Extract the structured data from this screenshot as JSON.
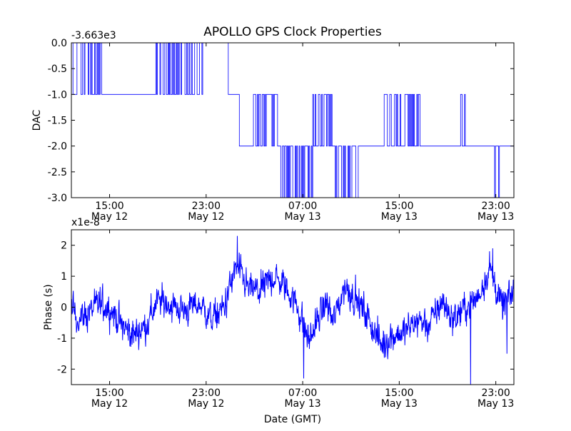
{
  "figure": {
    "title": "APOLLO GPS Clock Properties"
  },
  "chart_data": [
    {
      "type": "line",
      "title": "APOLLO GPS Clock Properties",
      "ylabel": "DAC",
      "xlabel": "",
      "offset_label": "-3.663e3",
      "x_range": [
        "2012-05-12T11:50",
        "2012-05-14T00:30"
      ],
      "ylim": [
        -3.0,
        0.0
      ],
      "y_ticks": [
        {
          "value": 0.0,
          "label": "0.0"
        },
        {
          "value": -0.5,
          "label": "-0.5"
        },
        {
          "value": -1.0,
          "label": "-1.0"
        },
        {
          "value": -1.5,
          "label": "-1.5"
        },
        {
          "value": -2.0,
          "label": "-2.0"
        },
        {
          "value": -2.5,
          "label": "-2.5"
        },
        {
          "value": -3.0,
          "label": "-3.0"
        }
      ],
      "x_ticks": [
        {
          "time": "2012-05-12T15:00",
          "label": "15:00",
          "sublabel": "May 12"
        },
        {
          "time": "2012-05-12T23:00",
          "label": "23:00",
          "sublabel": "May 12"
        },
        {
          "time": "2012-05-13T07:00",
          "label": "07:00",
          "sublabel": "May 13"
        },
        {
          "time": "2012-05-13T15:00",
          "label": "15:00",
          "sublabel": "May 13"
        },
        {
          "time": "2012-05-13T23:00",
          "label": "23:00",
          "sublabel": "May 13"
        }
      ],
      "series": [
        {
          "color": "#0000ff",
          "segments": [
            {
              "start": "2012-05-12T11:50",
              "end": "2012-05-12T14:25",
              "levels": [
                0,
                -1
              ]
            },
            {
              "start": "2012-05-12T14:25",
              "end": "2012-05-12T18:50",
              "levels": [
                -1
              ]
            },
            {
              "start": "2012-05-12T18:50",
              "end": "2012-05-12T22:55",
              "levels": [
                0,
                -1
              ]
            },
            {
              "start": "2012-05-12T22:55",
              "end": "2012-05-13T00:50",
              "levels": [
                0
              ]
            },
            {
              "start": "2012-05-13T00:50",
              "end": "2012-05-13T01:45",
              "levels": [
                -1
              ]
            },
            {
              "start": "2012-05-13T01:45",
              "end": "2012-05-13T02:55",
              "levels": [
                -2
              ]
            },
            {
              "start": "2012-05-13T02:55",
              "end": "2012-05-13T04:55",
              "levels": [
                -1,
                -2
              ]
            },
            {
              "start": "2012-05-13T04:55",
              "end": "2012-05-13T07:50",
              "levels": [
                -2,
                -3
              ]
            },
            {
              "start": "2012-05-13T07:50",
              "end": "2012-05-13T09:30",
              "levels": [
                -1,
                -2
              ]
            },
            {
              "start": "2012-05-13T09:30",
              "end": "2012-05-13T11:40",
              "levels": [
                -2,
                -3
              ]
            },
            {
              "start": "2012-05-13T11:40",
              "end": "2012-05-13T13:45",
              "levels": [
                -2
              ]
            },
            {
              "start": "2012-05-13T13:45",
              "end": "2012-05-13T16:55",
              "levels": [
                -1,
                -2
              ]
            },
            {
              "start": "2012-05-13T16:55",
              "end": "2012-05-13T20:05",
              "levels": [
                -2
              ]
            },
            {
              "start": "2012-05-13T20:05",
              "end": "2012-05-13T20:40",
              "levels": [
                -1,
                -2
              ]
            },
            {
              "start": "2012-05-13T20:40",
              "end": "2012-05-13T22:50",
              "levels": [
                -2
              ]
            },
            {
              "start": "2012-05-13T22:50",
              "end": "2012-05-13T23:30",
              "levels": [
                -2,
                -3
              ]
            },
            {
              "start": "2012-05-13T23:30",
              "end": "2012-05-14T00:30",
              "levels": [
                -2
              ]
            }
          ]
        }
      ]
    },
    {
      "type": "line",
      "ylabel": "Phase (s)",
      "xlabel": "Date (GMT)",
      "offset_label": "x1e-8",
      "x_range": [
        "2012-05-12T11:50",
        "2012-05-14T00:30"
      ],
      "ylim": [
        -2.5,
        2.5
      ],
      "y_ticks": [
        {
          "value": 2,
          "label": "2"
        },
        {
          "value": 1,
          "label": "1"
        },
        {
          "value": 0,
          "label": "0"
        },
        {
          "value": -1,
          "label": "-1"
        },
        {
          "value": -2,
          "label": "-2"
        }
      ],
      "x_ticks": [
        {
          "time": "2012-05-12T15:00",
          "label": "15:00",
          "sublabel": "May 12"
        },
        {
          "time": "2012-05-12T23:00",
          "label": "23:00",
          "sublabel": "May 12"
        },
        {
          "time": "2012-05-13T07:00",
          "label": "07:00",
          "sublabel": "May 13"
        },
        {
          "time": "2012-05-13T15:00",
          "label": "15:00",
          "sublabel": "May 13"
        },
        {
          "time": "2012-05-13T23:00",
          "label": "23:00",
          "sublabel": "May 13"
        }
      ],
      "series": [
        {
          "color": "#0000ff",
          "trend": [
            {
              "time": "2012-05-12T11:50",
              "value": 0.0
            },
            {
              "time": "2012-05-12T12:30",
              "value": -0.4
            },
            {
              "time": "2012-05-12T13:30",
              "value": -0.1
            },
            {
              "time": "2012-05-12T14:10",
              "value": 0.1
            },
            {
              "time": "2012-05-12T15:00",
              "value": 0.0
            },
            {
              "time": "2012-05-12T16:00",
              "value": -0.6
            },
            {
              "time": "2012-05-12T17:00",
              "value": -0.9
            },
            {
              "time": "2012-05-12T18:00",
              "value": -0.6
            },
            {
              "time": "2012-05-12T19:00",
              "value": 0.2
            },
            {
              "time": "2012-05-12T20:00",
              "value": 0.1
            },
            {
              "time": "2012-05-12T21:00",
              "value": -0.1
            },
            {
              "time": "2012-05-12T22:30",
              "value": 0.1
            },
            {
              "time": "2012-05-12T23:30",
              "value": -0.4
            },
            {
              "time": "2012-05-13T00:30",
              "value": 0.0
            },
            {
              "time": "2012-05-13T01:30",
              "value": 1.3
            },
            {
              "time": "2012-05-13T02:30",
              "value": 0.6
            },
            {
              "time": "2012-05-13T03:30",
              "value": 0.5
            },
            {
              "time": "2012-05-13T04:30",
              "value": 1.0
            },
            {
              "time": "2012-05-13T05:30",
              "value": 0.7
            },
            {
              "time": "2012-05-13T06:30",
              "value": 0.1
            },
            {
              "time": "2012-05-13T07:30",
              "value": -1.1
            },
            {
              "time": "2012-05-13T08:30",
              "value": -0.2
            },
            {
              "time": "2012-05-13T09:00",
              "value": 0.2
            },
            {
              "time": "2012-05-13T09:30",
              "value": -0.5
            },
            {
              "time": "2012-05-13T10:30",
              "value": 0.7
            },
            {
              "time": "2012-05-13T11:30",
              "value": 0.2
            },
            {
              "time": "2012-05-13T12:30",
              "value": -0.4
            },
            {
              "time": "2012-05-13T13:30",
              "value": -1.2
            },
            {
              "time": "2012-05-13T14:30",
              "value": -0.9
            },
            {
              "time": "2012-05-13T15:30",
              "value": -0.8
            },
            {
              "time": "2012-05-13T16:30",
              "value": -0.4
            },
            {
              "time": "2012-05-13T17:30",
              "value": -0.6
            },
            {
              "time": "2012-05-13T18:30",
              "value": 0.2
            },
            {
              "time": "2012-05-13T19:30",
              "value": -0.4
            },
            {
              "time": "2012-05-13T20:30",
              "value": 0.0
            },
            {
              "time": "2012-05-13T21:30",
              "value": 0.3
            },
            {
              "time": "2012-05-13T22:30",
              "value": 1.3
            },
            {
              "time": "2012-05-13T23:30",
              "value": 0.0
            },
            {
              "time": "2012-05-14T00:30",
              "value": 0.5
            }
          ],
          "noise_amplitude": 0.35,
          "spikes": [
            {
              "time": "2012-05-13T01:35",
              "value": 2.3
            },
            {
              "time": "2012-05-13T07:05",
              "value": -2.3
            },
            {
              "time": "2012-05-13T20:55",
              "value": -2.5
            },
            {
              "time": "2012-05-13T22:45",
              "value": 1.9
            },
            {
              "time": "2012-05-13T23:55",
              "value": -1.5
            }
          ]
        }
      ]
    }
  ]
}
